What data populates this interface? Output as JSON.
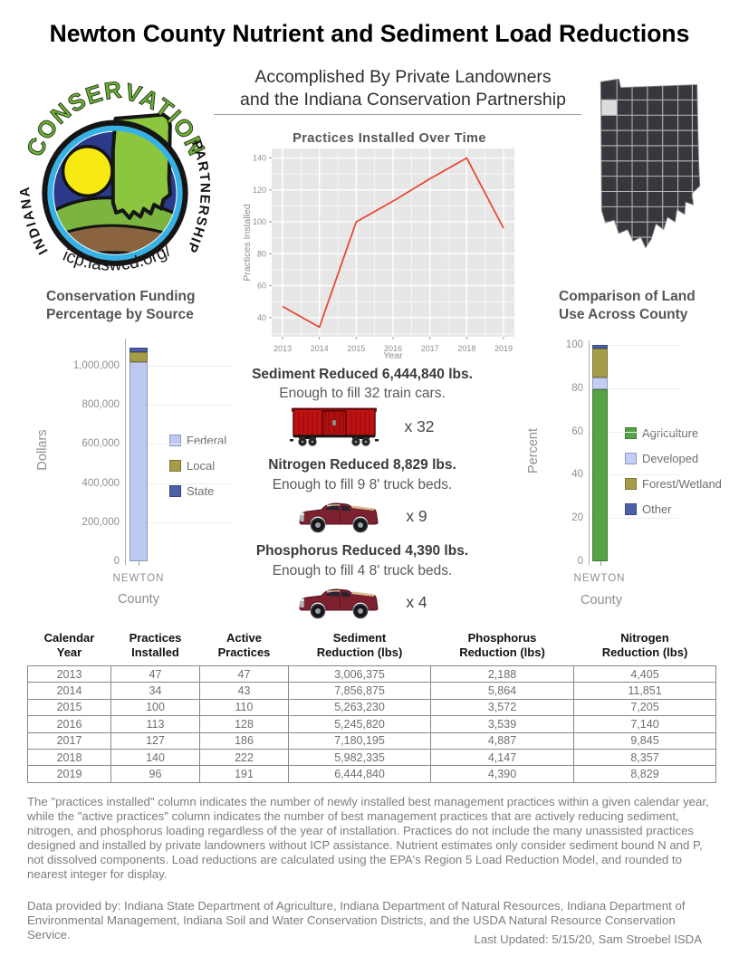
{
  "title": "Newton County Nutrient and Sediment Load Reductions",
  "subtitle": {
    "line1": "Accomplished By Private Landowners",
    "line2": "and the Indiana Conservation Partnership"
  },
  "logo": {
    "arc_top": "CONSERVATION",
    "left_text": "INDIANA",
    "right_text": "PARTNERSHIP",
    "url": "icp.iaswcd.org/"
  },
  "map": {
    "state": "Indiana",
    "highlighted_county": "Newton",
    "fill": "#37373d",
    "county_line": "#b9b9b9",
    "highlight_fill": "#dcdcdc"
  },
  "chart_data": [
    {
      "type": "line",
      "title": "Practices Installed Over Time",
      "xlabel": "Year",
      "ylabel": "Practices Installed",
      "x": [
        2013,
        2014,
        2015,
        2016,
        2017,
        2018,
        2019
      ],
      "values": [
        47,
        34,
        100,
        113,
        127,
        140,
        96
      ],
      "ylim": [
        28,
        146
      ],
      "yticks": [
        40,
        60,
        80,
        100,
        120,
        140
      ],
      "grid": "on",
      "line_color": "#e8442e",
      "plot_bg": "#e7e7e7"
    },
    {
      "type": "bar",
      "stacked": true,
      "title": "Conservation Funding Percentage by Source",
      "xlabel": "County",
      "ylabel": "Dollars",
      "categories": [
        "NEWTON"
      ],
      "series": [
        {
          "name": "Federal",
          "values": [
            1020000
          ],
          "color": "#bdc8f3"
        },
        {
          "name": "Local",
          "values": [
            48000
          ],
          "color": "#a69c48"
        },
        {
          "name": "State",
          "values": [
            25000
          ],
          "color": "#4c5fa8"
        }
      ],
      "yticks": [
        0,
        200000,
        400000,
        600000,
        800000,
        1000000
      ],
      "legend_position": "right"
    },
    {
      "type": "bar",
      "stacked": true,
      "title": "Comparison of Land Use Across County",
      "xlabel": "County",
      "ylabel": "Percent",
      "categories": [
        "NEWTON"
      ],
      "series": [
        {
          "name": "Agriculture",
          "values": [
            79.5
          ],
          "color": "#55a347"
        },
        {
          "name": "Developed",
          "values": [
            5.5
          ],
          "color": "#c4cdf5"
        },
        {
          "name": "Forest/Wetland",
          "values": [
            13.5
          ],
          "color": "#a69c48"
        },
        {
          "name": "Other",
          "values": [
            1.5
          ],
          "color": "#4c5fa8"
        }
      ],
      "yticks": [
        0,
        20,
        40,
        60,
        80,
        100
      ],
      "ylim": [
        0,
        100
      ],
      "legend_position": "right"
    }
  ],
  "reductions": {
    "sediment": {
      "heading": "Sediment Reduced 6,444,840 lbs.",
      "sub": "Enough to fill 32 train cars.",
      "icon": "train-car-icon",
      "mult": "x 32"
    },
    "nitrogen": {
      "heading": "Nitrogen Reduced 8,829  lbs.",
      "sub": "Enough to fill 9 8' truck beds.",
      "icon": "pickup-truck-icon",
      "mult": "x 9"
    },
    "phosphorus": {
      "heading": "Phosphorus Reduced 4,390  lbs.",
      "sub": "Enough to fill 4  8' truck beds.",
      "icon": "pickup-truck-icon",
      "mult": "x 4"
    }
  },
  "table": {
    "columns": [
      "Calendar\nYear",
      "Practices\nInstalled",
      "Active\nPractices",
      "Sediment\nReduction (lbs)",
      "Phosphorus\nReduction (lbs)",
      "Nitrogen\nReduction (lbs)"
    ],
    "rows": [
      [
        "2013",
        "47",
        "47",
        "3,006,375",
        "2,188",
        "4,405"
      ],
      [
        "2014",
        "34",
        "43",
        "7,856,875",
        "5,864",
        "11,851"
      ],
      [
        "2015",
        "100",
        "110",
        "5,263,230",
        "3,572",
        "7,205"
      ],
      [
        "2016",
        "113",
        "128",
        "5,245,820",
        "3,539",
        "7,140"
      ],
      [
        "2017",
        "127",
        "186",
        "7,180,195",
        "4,887",
        "9,845"
      ],
      [
        "2018",
        "140",
        "222",
        "5,982,335",
        "4,147",
        "8,357"
      ],
      [
        "2019",
        "96",
        "191",
        "6,444,840",
        "4,390",
        "8,829"
      ]
    ]
  },
  "notes": {
    "paragraph1": "The \"practices installed\" column indicates the number of newly installed best management practices within a given calendar year, while the \"active practices\" column indicates the number of best management practices that are actively reducing sediment, nitrogen, and phosphorus loading regardless of the year of installation.  Practices do not include the many unassisted practices designed and installed by private landowners without ICP assistance. Nutrient estimates only consider sediment bound N and P, not dissolved components. Load reductions are calculated using the EPA's Region 5 Load Reduction Model, and rounded to nearest integer for display.",
    "paragraph2": "Data provided by: Indiana State Department of Agriculture, Indiana Department of Natural Resources, Indiana Department of Environmental Management, Indiana Soil and Water Conservation Districts, and the USDA Natural Resource Conservation Service.",
    "last_updated": "Last Updated: 5/15/20, Sam Stroebel ISDA"
  }
}
